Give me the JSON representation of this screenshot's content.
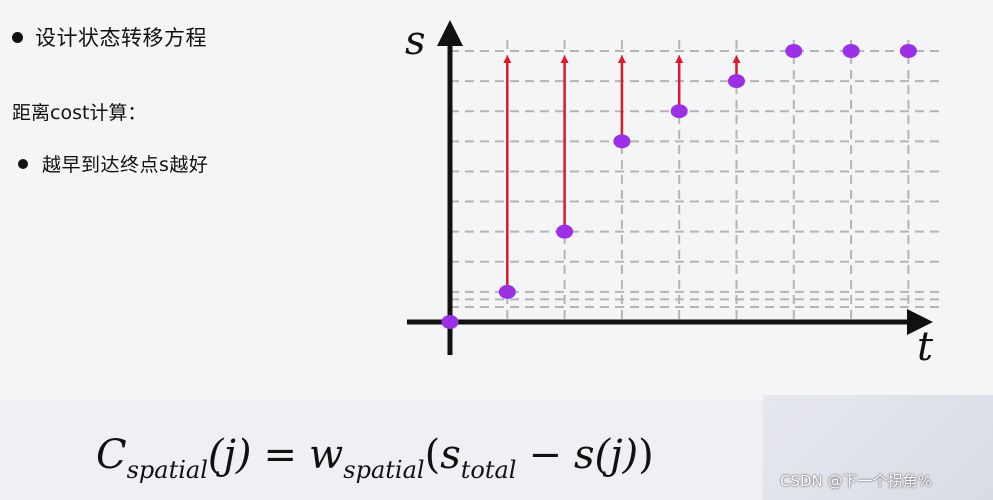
{
  "left_text": {
    "heading": "设计状态转移方程",
    "subheading": "距离cost计算：",
    "bullet": "越早到达终点s越好"
  },
  "diagram": {
    "axis_s_label": "s",
    "axis_t_label": "t",
    "colors": {
      "point": "#9b30e6",
      "arrow": "#e0182a",
      "grid": "#b5b5b5",
      "axis": "#111111"
    },
    "points": [
      {
        "t": 0,
        "s": 0,
        "arrow": false
      },
      {
        "t": 1,
        "s": 1,
        "arrow": true
      },
      {
        "t": 2,
        "s": 3,
        "arrow": true
      },
      {
        "t": 3,
        "s": 6,
        "arrow": true
      },
      {
        "t": 4,
        "s": 7,
        "arrow": true
      },
      {
        "t": 5,
        "s": 8,
        "arrow": true
      },
      {
        "t": 6,
        "s": 9,
        "arrow": false
      },
      {
        "t": 7,
        "s": 9,
        "arrow": false
      },
      {
        "t": 8,
        "s": 9,
        "arrow": false
      }
    ]
  },
  "formula": {
    "C": "C",
    "C_sub": "spatial",
    "j1": "(j)",
    "eq": "=",
    "w": "w",
    "w_sub": "spatial",
    "lp": "(",
    "s": "s",
    "s_sub": "total",
    "minus": "−",
    "sj": "s(j)",
    "rp": ")"
  },
  "watermark": "CSDN @下一个拐角%"
}
